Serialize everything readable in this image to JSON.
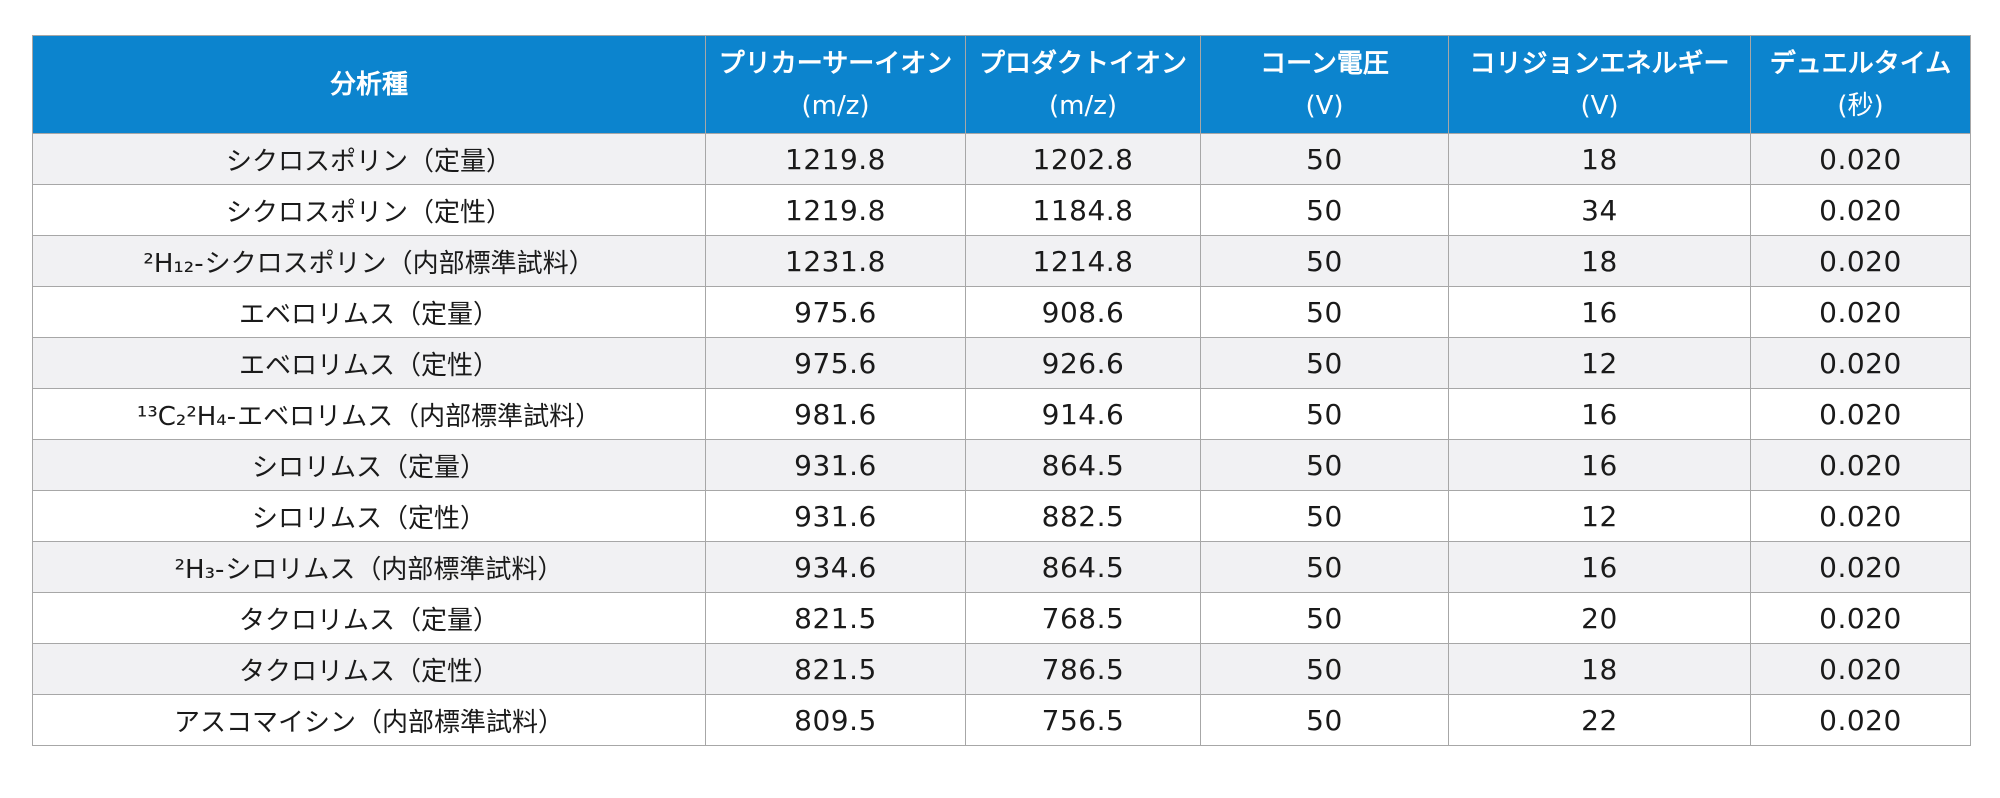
{
  "table": {
    "headers": [
      {
        "label": "分析種",
        "unit": ""
      },
      {
        "label": "プリカーサーイオン",
        "unit": "(m/z)"
      },
      {
        "label": "プロダクトイオン",
        "unit": "(m/z)"
      },
      {
        "label": "コーン電圧",
        "unit": "(V)"
      },
      {
        "label": "コリジョンエネルギー",
        "unit": "(V)"
      },
      {
        "label": "デュエルタイム",
        "unit": "(秒)"
      }
    ],
    "rows": [
      {
        "analyte": {
          "name": "シクロスポリン（定量）"
        },
        "precursor": "1219.8",
        "product": "1202.8",
        "cone": "50",
        "collision": "18",
        "dwell": "0.020"
      },
      {
        "analyte": {
          "name": "シクロスポリン（定性）"
        },
        "precursor": "1219.8",
        "product": "1184.8",
        "cone": "50",
        "collision": "34",
        "dwell": "0.020"
      },
      {
        "analyte": {
          "prefix": "²H₁₂-",
          "name": "シクロスポリン（内部標準試料）"
        },
        "precursor": "1231.8",
        "product": "1214.8",
        "cone": "50",
        "collision": "18",
        "dwell": "0.020"
      },
      {
        "analyte": {
          "name": "エベロリムス（定量）"
        },
        "precursor": "975.6",
        "product": "908.6",
        "cone": "50",
        "collision": "16",
        "dwell": "0.020"
      },
      {
        "analyte": {
          "name": "エベロリムス（定性）"
        },
        "precursor": "975.6",
        "product": "926.6",
        "cone": "50",
        "collision": "12",
        "dwell": "0.020"
      },
      {
        "analyte": {
          "prefix": "¹³C₂²H₄-",
          "name": "エベロリムス（内部標準試料）"
        },
        "precursor": "981.6",
        "product": "914.6",
        "cone": "50",
        "collision": "16",
        "dwell": "0.020"
      },
      {
        "analyte": {
          "name": "シロリムス（定量）"
        },
        "precursor": "931.6",
        "product": "864.5",
        "cone": "50",
        "collision": "16",
        "dwell": "0.020"
      },
      {
        "analyte": {
          "name": "シロリムス（定性）"
        },
        "precursor": "931.6",
        "product": "882.5",
        "cone": "50",
        "collision": "12",
        "dwell": "0.020"
      },
      {
        "analyte": {
          "prefix": "²H₃-",
          "name": "シロリムス（内部標準試料）"
        },
        "precursor": "934.6",
        "product": "864.5",
        "cone": "50",
        "collision": "16",
        "dwell": "0.020"
      },
      {
        "analyte": {
          "name": "タクロリムス（定量）"
        },
        "precursor": "821.5",
        "product": "768.5",
        "cone": "50",
        "collision": "20",
        "dwell": "0.020"
      },
      {
        "analyte": {
          "name": "タクロリムス（定性）"
        },
        "precursor": "821.5",
        "product": "786.5",
        "cone": "50",
        "collision": "18",
        "dwell": "0.020"
      },
      {
        "analyte": {
          "name": "アスコマイシン（内部標準試料）"
        },
        "precursor": "809.5",
        "product": "756.5",
        "cone": "50",
        "collision": "22",
        "dwell": "0.020"
      }
    ]
  }
}
